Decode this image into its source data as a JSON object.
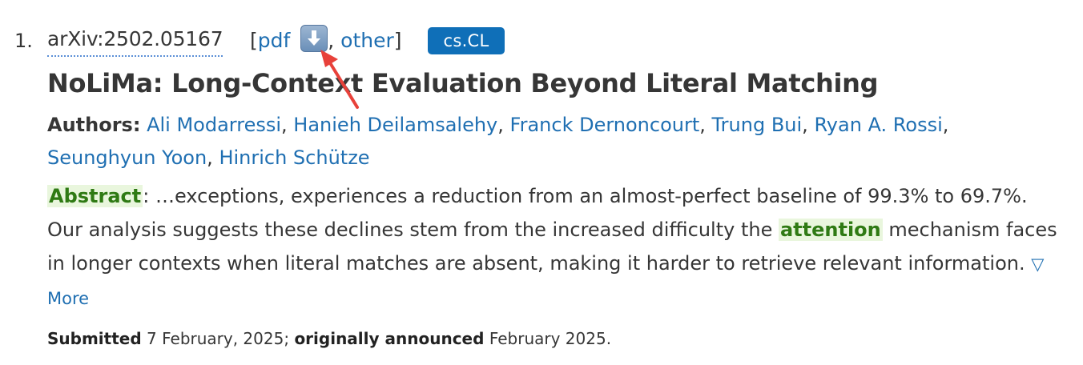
{
  "result": {
    "number": "1.",
    "arxiv_id": "arXiv:2502.05167",
    "links_open": "[",
    "pdf_label": "pdf",
    "comma": ",",
    "other_label": "other",
    "links_close": "]",
    "category": "cs.CL",
    "title": "NoLiMa: Long-Context Evaluation Beyond Literal Matching",
    "authors_label": "Authors:",
    "authors": [
      "Ali Modarressi",
      "Hanieh Deilamsalehy",
      "Franck Dernoncourt",
      "Trung Bui",
      "Ryan A. Rossi",
      "Seunghyun Yoon",
      "Hinrich Schütze"
    ],
    "abstract_label": "Abstract",
    "abstract_text_1": ": …exceptions, experiences a reduction from an almost-perfect baseline of 99.3% to 69.7%. Our analysis suggests these declines stem from the increased difficulty the ",
    "abstract_highlight": "attention",
    "abstract_text_2": " mechanism faces in longer contexts when literal matches are absent, making it harder to retrieve relevant information. ",
    "more_label": "▽ More",
    "submitted_label": "Submitted",
    "submitted_date": "7 February, 2025;",
    "announced_label": "originally announced",
    "announced_date": "February 2025."
  },
  "colors": {
    "link": "#1f6fb2",
    "tag_bg": "#0f6fb8",
    "highlight_bg": "#e9f6dd",
    "highlight_text": "#2f7a14",
    "annotation_arrow": "#e8413a"
  },
  "icons": {
    "download": "download-arrow-icon",
    "annotation": "red-pointer-arrow-icon"
  }
}
